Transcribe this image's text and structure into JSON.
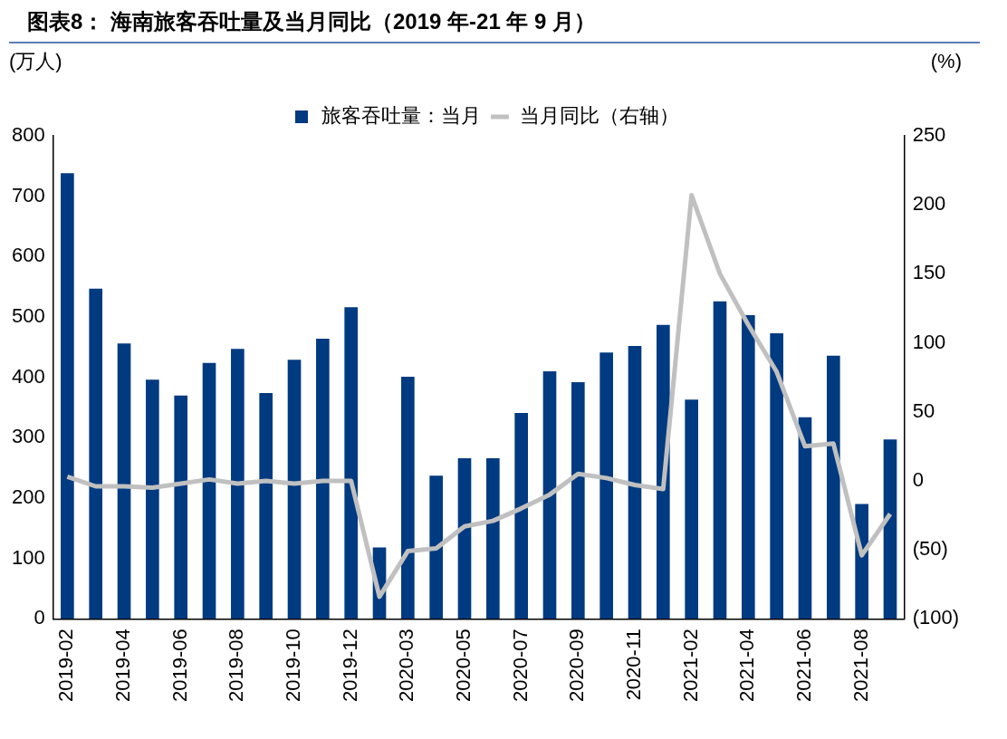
{
  "chart_data": {
    "type": "bar",
    "title": "图表8：  海南旅客吞吐量及当月同比（2019 年-21 年 9 月）",
    "ylabel": "(万人)",
    "y2label": "(%)",
    "categories": [
      "2019-02",
      null,
      "2019-04",
      null,
      "2019-06",
      null,
      "2019-08",
      null,
      "2019-10",
      null,
      "2019-12",
      null,
      "2020-03",
      null,
      "2020-05",
      null,
      "2020-07",
      null,
      "2020-09",
      null,
      "2020-11",
      null,
      "2021-02",
      null,
      "2021-04",
      null,
      "2021-06",
      null,
      "2021-08",
      null
    ],
    "series": [
      {
        "name": "旅客吞吐量：当月",
        "color": "#003a80",
        "values": [
          738,
          547,
          456,
          396,
          370,
          424,
          447,
          374,
          429,
          464,
          516,
          118,
          401,
          237,
          266,
          266,
          341,
          410,
          392,
          441,
          452,
          487,
          363,
          526,
          503,
          473,
          334,
          436,
          190,
          297
        ]
      },
      {
        "name": "当月同比（右轴）",
        "type": "line",
        "axis": "y2",
        "color": "#c0c0c0",
        "values": [
          3,
          -4,
          -4,
          -5,
          -2,
          1,
          -2,
          0,
          -2,
          0,
          0,
          -84,
          -51,
          -49,
          -33,
          -29,
          -20,
          -10,
          5,
          2,
          -3,
          -6,
          207,
          150,
          113,
          79,
          25,
          27,
          -54,
          -24
        ]
      }
    ],
    "ylim": [
      0,
      800
    ],
    "yticks": [
      0,
      100,
      200,
      300,
      400,
      500,
      600,
      700,
      800
    ],
    "y2lim": [
      -100,
      250
    ],
    "y2ticks": [
      {
        "value": -100,
        "label": "(100)"
      },
      {
        "value": -50,
        "label": "(50)"
      },
      0,
      50,
      100,
      150,
      200,
      250
    ],
    "grid": false,
    "legend": "top",
    "marker": "none",
    "line_style": "solid"
  }
}
